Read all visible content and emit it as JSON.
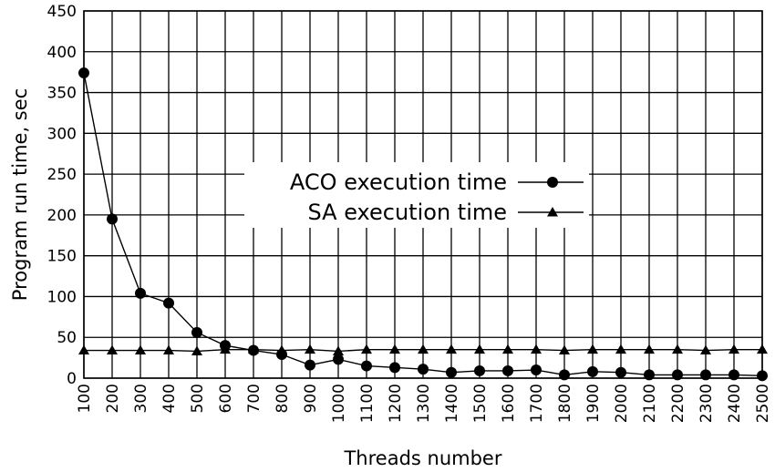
{
  "chart_data": {
    "type": "line",
    "title": "",
    "xlabel": "Threads number",
    "ylabel": "Program run time, sec",
    "x": [
      100,
      200,
      300,
      400,
      500,
      600,
      700,
      800,
      900,
      1000,
      1100,
      1200,
      1300,
      1400,
      1500,
      1600,
      1700,
      1800,
      1900,
      2000,
      2100,
      2200,
      2300,
      2400,
      2500
    ],
    "ylim": [
      0,
      450
    ],
    "yticks": [
      0,
      50,
      100,
      150,
      200,
      250,
      300,
      350,
      400,
      450
    ],
    "grid": true,
    "legend_position": "center",
    "series": [
      {
        "name": "ACO execution time",
        "marker": "circle",
        "color": "#000000",
        "values": [
          374,
          195,
          104,
          92,
          56,
          40,
          34,
          29,
          16,
          23,
          15,
          13,
          11,
          7,
          9,
          9,
          10,
          4,
          8,
          7,
          4,
          4,
          4,
          4,
          3
        ]
      },
      {
        "name": "SA execution time",
        "marker": "triangle",
        "color": "#000000",
        "values": [
          34,
          34,
          34,
          34,
          33,
          35,
          35,
          34,
          35,
          33,
          35,
          35,
          35,
          35,
          35,
          35,
          35,
          34,
          35,
          35,
          35,
          35,
          34,
          35,
          35
        ]
      }
    ]
  }
}
